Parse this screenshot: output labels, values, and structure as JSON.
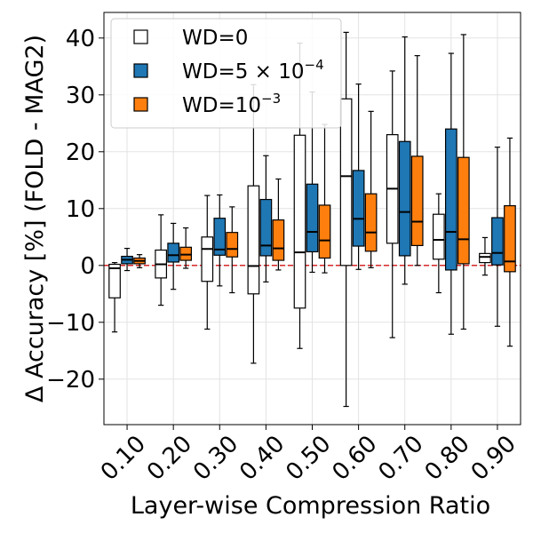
{
  "chart_data": {
    "type": "boxplot",
    "xlabel": "Layer-wise Compression Ratio",
    "ylabel": "Δ Accuracy [%] (FOLD - MAG2)",
    "ylim": [
      -28,
      44.5
    ],
    "yticks": [
      -20,
      -10,
      0,
      10,
      20,
      30,
      40
    ],
    "ytick_labels": [
      "−20",
      "−10",
      "0",
      "10",
      "20",
      "30",
      "40"
    ],
    "reference_line": {
      "y": 0,
      "color": "#d62728",
      "style": "dashed"
    },
    "grid": true,
    "legend_position": "top-left",
    "categories": [
      "0.10",
      "0.20",
      "0.30",
      "0.40",
      "0.50",
      "0.60",
      "0.70",
      "0.80",
      "0.90"
    ],
    "series": [
      {
        "name": "WD=0",
        "legend": {
          "base": "WD=0",
          "sup": ""
        },
        "color": "#ffffff",
        "boxes": [
          {
            "whislo": -11.7,
            "q1": -5.7,
            "med": -0.5,
            "q3": 0.2,
            "whishi": 0.5
          },
          {
            "whislo": -7.0,
            "q1": -2.2,
            "med": 0.2,
            "q3": 2.7,
            "whishi": 8.9
          },
          {
            "whislo": -11.2,
            "q1": -2.8,
            "med": 2.9,
            "q3": 5.0,
            "whishi": 12.3
          },
          {
            "whislo": -17.2,
            "q1": -5.0,
            "med": -0.1,
            "q3": 14.0,
            "whishi": 31.8
          },
          {
            "whislo": -14.6,
            "q1": -7.5,
            "med": 2.3,
            "q3": 22.9,
            "whishi": 39.1
          },
          {
            "whislo": -24.8,
            "q1": 0.0,
            "med": 15.7,
            "q3": 29.3,
            "whishi": 41.0
          },
          {
            "whislo": -12.7,
            "q1": 3.9,
            "med": 13.5,
            "q3": 23.0,
            "whishi": 34.2
          },
          {
            "whislo": -4.8,
            "q1": 1.1,
            "med": 4.5,
            "q3": 9.0,
            "whishi": 12.6
          },
          {
            "whislo": -1.7,
            "q1": 0.5,
            "med": 1.5,
            "q3": 2.1,
            "whishi": 4.9
          }
        ]
      },
      {
        "name": "WD=5×10^-4",
        "legend": {
          "base": "WD=5 × 10",
          "sup": "−4"
        },
        "color": "#1f77b4",
        "boxes": [
          {
            "whislo": -0.9,
            "q1": 0.3,
            "med": 1.0,
            "q3": 1.6,
            "whishi": 3.0
          },
          {
            "whislo": -4.2,
            "q1": 0.6,
            "med": 1.8,
            "q3": 3.9,
            "whishi": 7.4
          },
          {
            "whislo": -3.6,
            "q1": 1.8,
            "med": 2.8,
            "q3": 8.3,
            "whishi": 12.4
          },
          {
            "whislo": -2.9,
            "q1": 1.7,
            "med": 3.5,
            "q3": 11.6,
            "whishi": 19.3
          },
          {
            "whislo": -1.2,
            "q1": 2.4,
            "med": 5.9,
            "q3": 14.3,
            "whishi": 30.5
          },
          {
            "whislo": -0.7,
            "q1": 3.4,
            "med": 8.2,
            "q3": 16.7,
            "whishi": 31.9
          },
          {
            "whislo": -3.3,
            "q1": 1.7,
            "med": 9.4,
            "q3": 21.8,
            "whishi": 40.2
          },
          {
            "whislo": -12.1,
            "q1": -0.8,
            "med": 5.9,
            "q3": 24.0,
            "whishi": 37.3
          },
          {
            "whislo": -10.7,
            "q1": 0.1,
            "med": 2.2,
            "q3": 8.4,
            "whishi": 20.8
          }
        ]
      },
      {
        "name": "WD=10^-3",
        "legend": {
          "base": "WD=10",
          "sup": "−3"
        },
        "color": "#ff7f0e",
        "boxes": [
          {
            "whislo": -0.4,
            "q1": 0.3,
            "med": 0.8,
            "q3": 1.3,
            "whishi": 1.9
          },
          {
            "whislo": -0.5,
            "q1": 0.9,
            "med": 1.9,
            "q3": 3.2,
            "whishi": 6.6
          },
          {
            "whislo": -4.8,
            "q1": 1.5,
            "med": 2.9,
            "q3": 5.8,
            "whishi": 10.3
          },
          {
            "whislo": -0.8,
            "q1": 0.9,
            "med": 3.0,
            "q3": 8.0,
            "whishi": 15.2
          },
          {
            "whislo": -1.3,
            "q1": 1.3,
            "med": 4.4,
            "q3": 10.6,
            "whishi": 24.8
          },
          {
            "whislo": -0.4,
            "q1": 2.5,
            "med": 5.8,
            "q3": 12.6,
            "whishi": 27.1
          },
          {
            "whislo": 0.0,
            "q1": 3.5,
            "med": 7.7,
            "q3": 19.2,
            "whishi": 36.9
          },
          {
            "whislo": -11.2,
            "q1": 0.3,
            "med": 4.6,
            "q3": 19.0,
            "whishi": 40.6
          },
          {
            "whislo": -14.2,
            "q1": -1.1,
            "med": 0.7,
            "q3": 10.5,
            "whishi": 22.4
          }
        ]
      }
    ]
  }
}
